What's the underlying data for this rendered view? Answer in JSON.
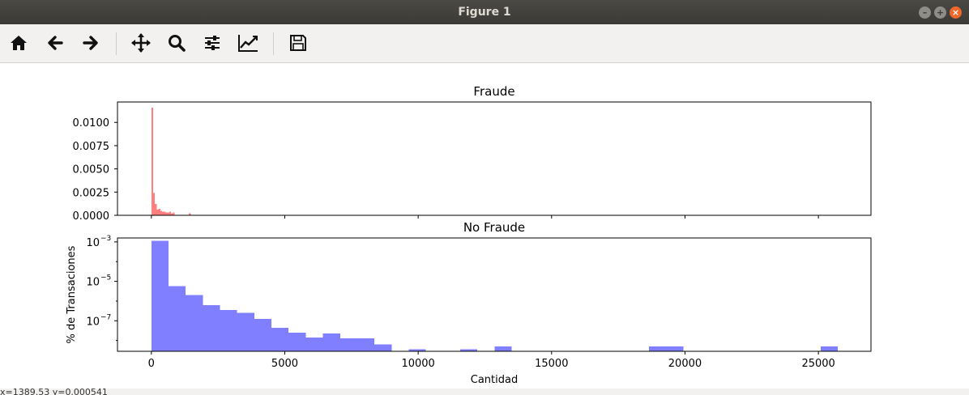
{
  "window": {
    "title": "Figure 1"
  },
  "toolbar": {
    "tools": [
      "home-icon",
      "back-arrow-icon",
      "forward-arrow-icon",
      "pan-icon",
      "zoom-icon",
      "configure-subplots-icon",
      "edit-axes-icon",
      "save-icon"
    ]
  },
  "status": {
    "text": "x=1389.53     y=0.000541"
  },
  "colors": {
    "fraud": "#ff0000",
    "nofraud": "#0000ff",
    "bar_alpha": 0.5
  },
  "chart_data": [
    {
      "type": "bar",
      "title": "Fraude",
      "xlabel": "",
      "ylabel": "",
      "xlim": [
        -1270,
        26970
      ],
      "ylim": [
        0,
        0.0122
      ],
      "yscale": "linear",
      "yticks": [
        0.0,
        0.0025,
        0.005,
        0.0075,
        0.01
      ],
      "ytick_labels": [
        "0.0000",
        "0.0025",
        "0.0050",
        "0.0075",
        "0.0100"
      ],
      "xticks": [
        0,
        5000,
        10000,
        15000,
        20000,
        25000
      ],
      "xtick_labels": [],
      "bin_width": 67,
      "bin_starts": [
        0,
        67,
        134,
        201,
        268,
        335,
        402,
        469,
        536,
        603,
        670,
        737,
        804,
        1407
      ],
      "values": [
        0.0116,
        0.0024,
        0.0012,
        0.0006,
        0.0007,
        0.0005,
        0.0004,
        0.0004,
        0.0003,
        0.0003,
        0.0004,
        0.0002,
        0.0003,
        0.0002
      ]
    },
    {
      "type": "bar",
      "title": "No Fraude",
      "xlabel": "Cantidad",
      "ylabel": "% de Transaciones",
      "xlim": [
        -1270,
        26970
      ],
      "ylim_log10": [
        -8.55,
        -2.8
      ],
      "yscale": "log",
      "yticks_log10": [
        -7,
        -5,
        -3
      ],
      "ytick_labels": [
        "10",
        "10",
        "10"
      ],
      "ytick_exponents": [
        "−7",
        "−5",
        "−3"
      ],
      "xticks": [
        0,
        5000,
        10000,
        15000,
        20000,
        25000
      ],
      "xtick_labels": [
        "0",
        "5000",
        "10000",
        "15000",
        "20000",
        "25000"
      ],
      "bin_width": 643,
      "bin_starts": [
        0,
        643,
        1286,
        1929,
        2572,
        3215,
        3858,
        4501,
        5144,
        5787,
        6430,
        7073,
        7716,
        8359,
        9645,
        11574,
        12860,
        18650,
        19293,
        25083
      ],
      "values_log10": [
        -2.95,
        -5.25,
        -5.7,
        -6.2,
        -6.45,
        -6.6,
        -6.9,
        -7.35,
        -7.6,
        -7.85,
        -7.65,
        -7.9,
        -7.9,
        -8.2,
        -8.45,
        -8.45,
        -8.3,
        -8.3,
        -8.3,
        -8.3
      ]
    }
  ]
}
